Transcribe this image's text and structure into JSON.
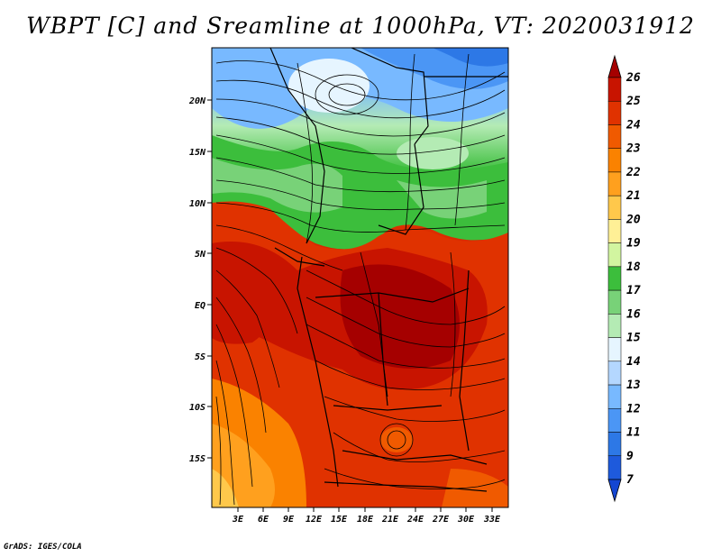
{
  "title": "WBPT [C] and Sreamline at 1000hPa, VT: 2020031912",
  "footer": "GrADS: IGES/COLA",
  "map": {
    "lat_labels": [
      "20N",
      "15N",
      "10N",
      "5N",
      "EQ",
      "5S",
      "10S",
      "15S"
    ],
    "lon_labels": [
      "3E",
      "6E",
      "9E",
      "12E",
      "15E",
      "18E",
      "21E",
      "24E",
      "27E",
      "30E",
      "33E"
    ]
  },
  "colorbar": {
    "levels": [
      "26",
      "25",
      "24",
      "23",
      "22",
      "21",
      "20",
      "19",
      "18",
      "17",
      "16",
      "15",
      "14",
      "13",
      "12",
      "11",
      "9",
      "7"
    ],
    "colors": [
      "#a50000",
      "#c81400",
      "#e03200",
      "#f05a00",
      "#fa8200",
      "#ffa01e",
      "#ffc84b",
      "#fff096",
      "#d2f5a0",
      "#3cbe3c",
      "#78d278",
      "#b4ebb4",
      "#e6f5ff",
      "#b4d7ff",
      "#78b9ff",
      "#4b96f5",
      "#2d78e6",
      "#1e5adc",
      "#1446d2"
    ]
  }
}
